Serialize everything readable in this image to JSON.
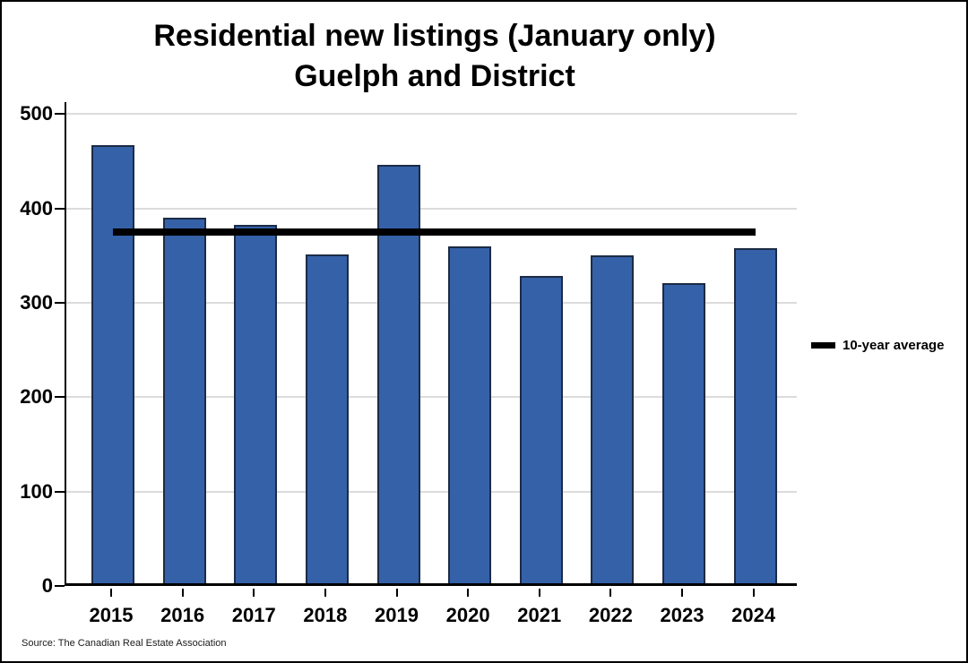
{
  "chart_data": {
    "type": "bar",
    "title_line1": "Residential new listings (January only)",
    "title_line2": "Guelph and District",
    "categories": [
      "2015",
      "2016",
      "2017",
      "2018",
      "2019",
      "2020",
      "2021",
      "2022",
      "2023",
      "2024"
    ],
    "values": [
      467,
      390,
      383,
      351,
      446,
      360,
      328,
      350,
      321,
      358
    ],
    "average_line": {
      "label": "10-year average",
      "value": 375.4
    },
    "y_ticks": [
      0,
      100,
      200,
      300,
      400,
      500
    ],
    "ylim": [
      0,
      513
    ],
    "grid": "horizontal-light-gray",
    "legend_position": "right",
    "source": "Source: The Canadian Real Estate Association",
    "colors": {
      "bar_fill": "#3561A8",
      "bar_border": "#1C2B45",
      "average_line": "#000000",
      "gridline": "#DCDCDC",
      "axis": "#000000",
      "background": "#FFFFFF",
      "text": "#000000"
    }
  }
}
